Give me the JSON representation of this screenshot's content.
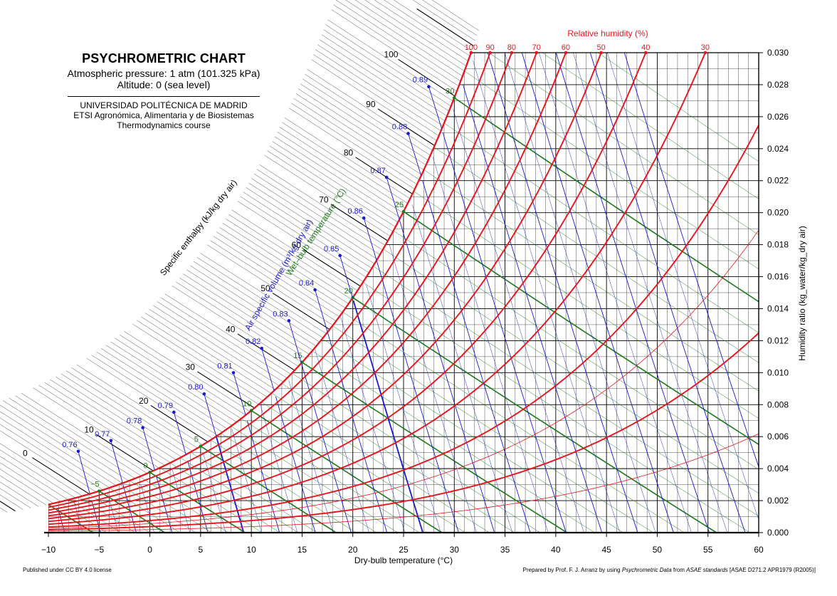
{
  "header": {
    "title": "PSYCHROMETRIC CHART",
    "pressure": "Atmospheric pressure: 1 atm (101.325 kPa)",
    "altitude": "Altitude: 0 (sea level)",
    "institution": "UNIVERSIDAD POLITÉCNICA DE MADRID",
    "school": "ETSI Agronómica, Alimentaria y de Biosistemas",
    "course": "Thermodynamics course"
  },
  "footer": {
    "license": "Published under CC BY 4.0 license",
    "credit_prefix": "Prepared by Prof. F. J. Arranz by using ",
    "credit_source": "Psychrometric Data",
    "credit_middle": " from ",
    "credit_standard": "ASAE standards",
    "credit_suffix": " [ASAE D271.2 APR1979 (R2005)]"
  },
  "colors": {
    "rh": "#e8141c",
    "volume": "#1a1acd",
    "wetbulb": "#1c7a1c",
    "enthalpy": "#000000",
    "grid": "#000000",
    "sat_fill": "#ffffff"
  },
  "chart_data": {
    "type": "line",
    "title": "PSYCHROMETRIC CHART",
    "xlabel": "Dry-bulb temperature (°C)",
    "ylabel": "Humidity ratio (kg_water/kg_dry air)",
    "xlim": [
      -10,
      60
    ],
    "ylim": [
      0,
      0.03
    ],
    "pressure_kpa": 101.325,
    "x_ticks": [
      -10,
      -5,
      0,
      5,
      10,
      15,
      20,
      25,
      30,
      35,
      40,
      45,
      50,
      55,
      60
    ],
    "x_tick_labels": [
      "−10",
      "−5",
      "0",
      "5",
      "10",
      "15",
      "20",
      "25",
      "30",
      "35",
      "40",
      "45",
      "50",
      "55",
      "60"
    ],
    "y_ticks": [
      0,
      0.002,
      0.004,
      0.006,
      0.008,
      0.01,
      0.012,
      0.014,
      0.016,
      0.018,
      0.02,
      0.022,
      0.024,
      0.026,
      0.028,
      0.03
    ],
    "y_tick_labels": [
      "0.000",
      "0.002",
      "0.004",
      "0.006",
      "0.008",
      "0.010",
      "0.012",
      "0.014",
      "0.016",
      "0.018",
      "0.020",
      "0.022",
      "0.024",
      "0.026",
      "0.028",
      "0.030"
    ],
    "relative_humidity": {
      "label": "Relative humidity (%)",
      "levels": [
        100,
        90,
        80,
        70,
        60,
        50,
        40,
        30,
        20,
        10
      ],
      "labeled_levels": [
        100,
        90,
        80,
        70,
        60,
        50,
        40,
        30
      ],
      "thin_levels": [
        15,
        5
      ]
    },
    "wet_bulb": {
      "label": "Wet–bulb temperature (°C)",
      "labeled_values": [
        -5,
        0,
        5,
        10,
        15,
        20,
        25,
        30
      ],
      "labels": [
        "−5",
        "0",
        "5",
        "10",
        "15",
        "20",
        "25",
        "30"
      ],
      "step": 1
    },
    "specific_volume": {
      "label": "Air specific volume (m³/kg dry air)",
      "values": [
        0.76,
        0.77,
        0.78,
        0.79,
        0.8,
        0.81,
        0.82,
        0.83,
        0.84,
        0.85,
        0.86,
        0.87,
        0.88,
        0.89
      ],
      "labels": [
        "0.76",
        "0.77",
        "0.78",
        "0.79",
        "0.80",
        "0.81",
        "0.82",
        "0.83",
        "0.84",
        "0.85",
        "0.86",
        "0.87",
        "0.88",
        "0.89"
      ],
      "bold_values": [
        0.8,
        0.85
      ]
    },
    "enthalpy": {
      "label": "Specific enthalpy (kJ/kg dry air)",
      "labeled_values": [
        0,
        10,
        20,
        30,
        40,
        50,
        60,
        70,
        80,
        90,
        100
      ],
      "labels": [
        "0",
        "10",
        "20",
        "30",
        "40",
        "50",
        "60",
        "70",
        "80",
        "90",
        "100"
      ],
      "range": [
        -10,
        140
      ]
    }
  }
}
